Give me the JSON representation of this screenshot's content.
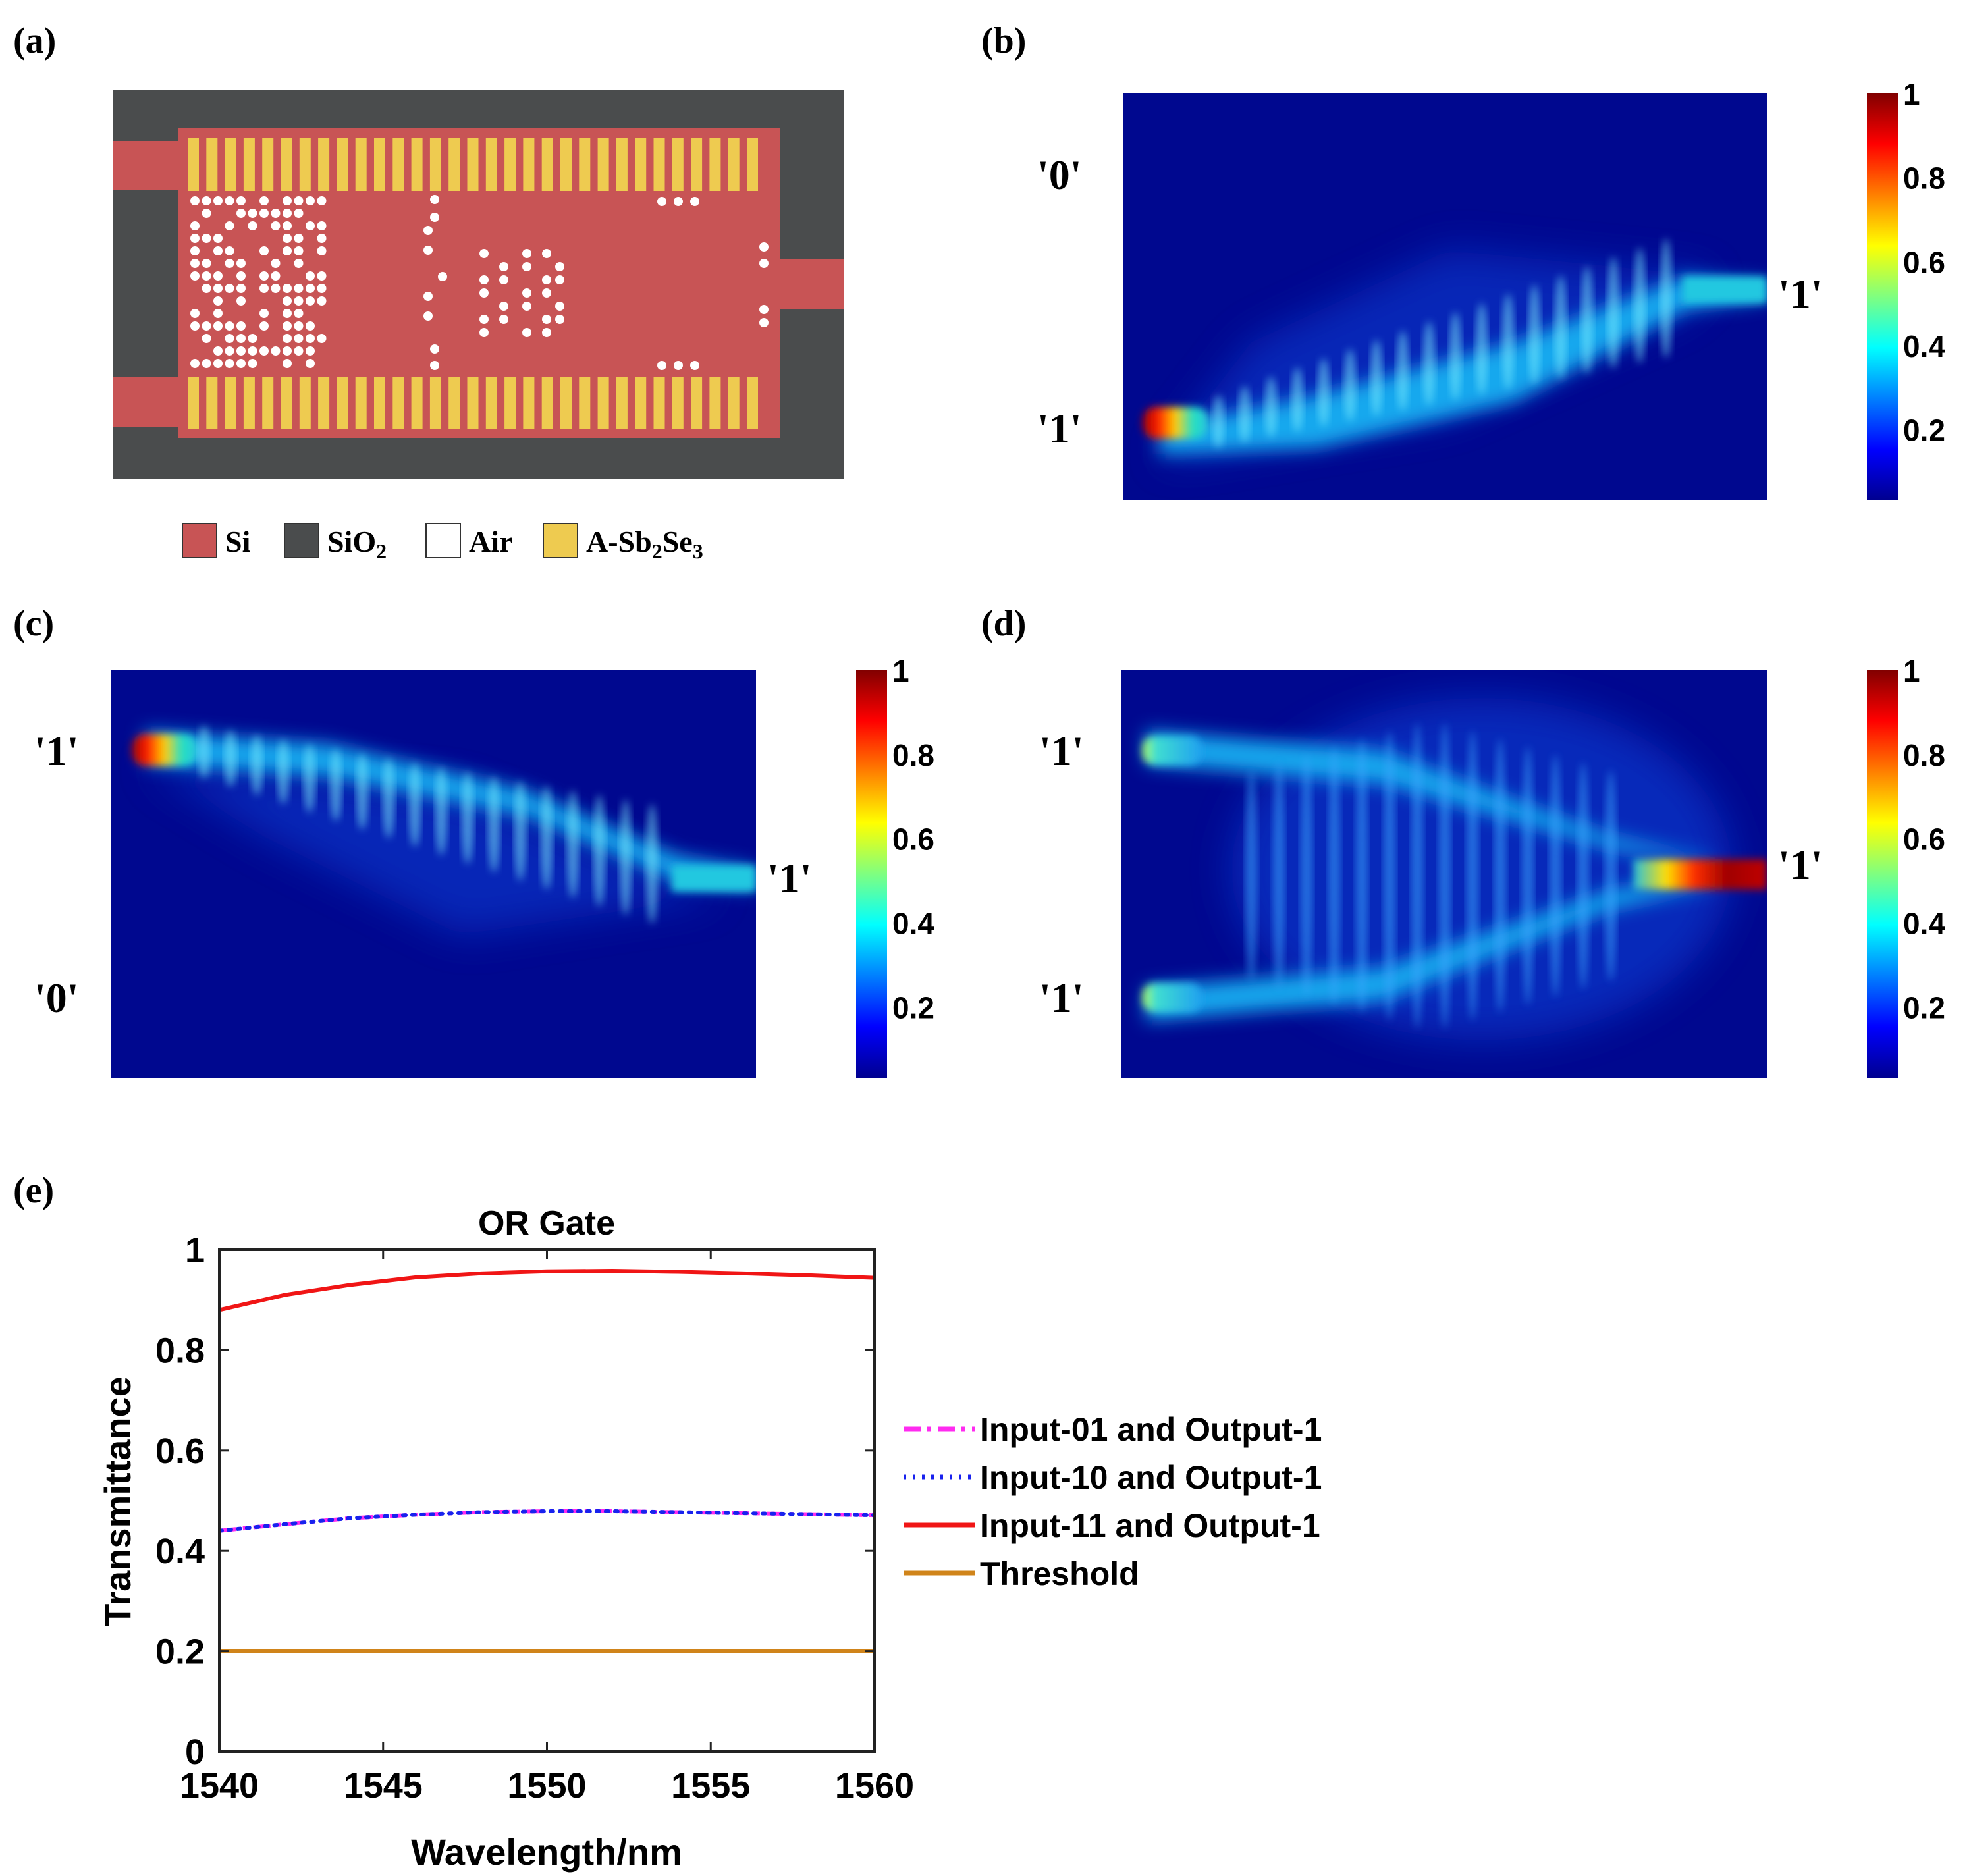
{
  "colors": {
    "si": "#c85455",
    "sio2": "#4a4c4d",
    "air": "#ffffff",
    "sb2se3": "#eecb50",
    "jet_background": "#00088f",
    "magenta": "#ff2bf0",
    "blue": "#1822ee",
    "red": "#f01515",
    "threshold": "#d0841a"
  },
  "panels": {
    "a": {
      "label": "(a)",
      "legend": [
        {
          "key": "si",
          "main": "Si",
          "sub": "",
          "tail": "",
          "sub2": ""
        },
        {
          "key": "sio2",
          "main": "SiO",
          "sub": "2",
          "tail": "",
          "sub2": ""
        },
        {
          "key": "air",
          "main": "Air",
          "sub": "",
          "tail": "",
          "sub2": ""
        },
        {
          "key": "sb2se3",
          "main": "A-Sb",
          "sub": "2",
          "tail": "Se",
          "sub2": "3"
        }
      ]
    },
    "b": {
      "label": "(b)",
      "inputs": [
        "'0'",
        "'1'"
      ],
      "output": "'1'"
    },
    "c": {
      "label": "(c)",
      "inputs": [
        "'1'",
        "'0'"
      ],
      "output": "'1'"
    },
    "d": {
      "label": "(d)",
      "inputs": [
        "'1'",
        "'1'"
      ],
      "output": "'1'"
    },
    "e": {
      "label": "(e)"
    }
  },
  "colorbar": {
    "ticks": [
      "1",
      "0.8",
      "0.6",
      "0.4",
      "0.2"
    ]
  },
  "chart_data": {
    "type": "line",
    "title": "OR Gate",
    "xlabel": "Wavelength/nm",
    "ylabel": "Transmittance",
    "xlim": [
      1540,
      1560
    ],
    "ylim": [
      0,
      1
    ],
    "xticks": [
      1540,
      1545,
      1550,
      1555,
      1560
    ],
    "yticks": [
      0,
      0.2,
      0.4,
      0.6,
      0.8,
      1
    ],
    "x": [
      1540,
      1542,
      1544,
      1546,
      1548,
      1550,
      1552,
      1554,
      1556,
      1558,
      1560
    ],
    "series": [
      {
        "name": "Input-01 and Output-1",
        "style": "dashdot",
        "color": "#ff2bf0",
        "values": [
          0.44,
          0.453,
          0.465,
          0.472,
          0.477,
          0.479,
          0.479,
          0.477,
          0.475,
          0.473,
          0.471
        ]
      },
      {
        "name": "Input-10 and Output-1",
        "style": "dotted",
        "color": "#1822ee",
        "values": [
          0.44,
          0.453,
          0.465,
          0.472,
          0.477,
          0.479,
          0.479,
          0.477,
          0.475,
          0.473,
          0.471
        ]
      },
      {
        "name": "Input-11 and Output-1",
        "style": "solid",
        "color": "#f01515",
        "values": [
          0.88,
          0.91,
          0.93,
          0.945,
          0.953,
          0.957,
          0.958,
          0.956,
          0.953,
          0.949,
          0.944
        ]
      },
      {
        "name": "Threshold",
        "style": "solid",
        "color": "#d0841a",
        "values": [
          0.2,
          0.2,
          0.2,
          0.2,
          0.2,
          0.2,
          0.2,
          0.2,
          0.2,
          0.2,
          0.2
        ]
      }
    ],
    "legend_position": "right"
  }
}
